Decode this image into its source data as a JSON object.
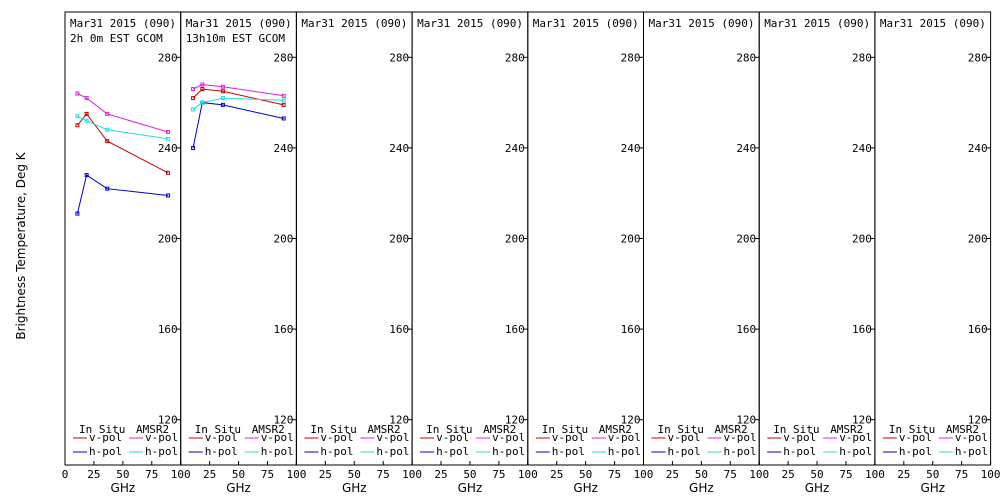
{
  "y_axis_label": "Brightness Temperature, Deg K",
  "x_axis_label": "GHz",
  "legend": {
    "in_situ": "In Situ",
    "amsr2": "AMSR2",
    "vpol": "v-pol",
    "hpol": "h-pol"
  },
  "colors": {
    "insitu_v": "#cc0000",
    "insitu_h": "#0000cc",
    "amsr2_v": "#dd22dd",
    "amsr2_h": "#22dddd"
  },
  "chart_data": {
    "type": "line",
    "xlim": [
      0,
      100
    ],
    "ylim": [
      100,
      300
    ],
    "x_ticks": [
      0,
      25,
      50,
      75,
      100
    ],
    "y_ticks": [
      120,
      160,
      200,
      240,
      280
    ],
    "panels": [
      {
        "title": "Mar31 2015 (090)",
        "subtitle": "2h 0m EST GCOM",
        "series": [
          {
            "name": "In Situ v-pol",
            "x": [
              10.7,
              18.7,
              36.5,
              89
            ],
            "y": [
              250,
              255,
              243,
              229
            ]
          },
          {
            "name": "In Situ h-pol",
            "x": [
              10.7,
              18.7,
              36.5,
              89
            ],
            "y": [
              211,
              228,
              222,
              219
            ]
          },
          {
            "name": "AMSR2 v-pol",
            "x": [
              10.7,
              18.7,
              36.5,
              89
            ],
            "y": [
              264,
              262,
              255,
              247
            ]
          },
          {
            "name": "AMSR2 h-pol",
            "x": [
              10.7,
              18.7,
              36.5,
              89
            ],
            "y": [
              254,
              252,
              248,
              244
            ]
          }
        ]
      },
      {
        "title": "Mar31 2015 (090)",
        "subtitle": "13h10m EST GCOM",
        "series": [
          {
            "name": "In Situ v-pol",
            "x": [
              10.7,
              18.7,
              36.5,
              89
            ],
            "y": [
              262,
              266,
              265,
              259
            ]
          },
          {
            "name": "In Situ h-pol",
            "x": [
              10.7,
              18.7,
              36.5,
              89
            ],
            "y": [
              240,
              260,
              259,
              253
            ]
          },
          {
            "name": "AMSR2 v-pol",
            "x": [
              10.7,
              18.7,
              36.5,
              89
            ],
            "y": [
              266,
              268,
              267,
              263
            ]
          },
          {
            "name": "AMSR2 h-pol",
            "x": [
              10.7,
              18.7,
              36.5,
              89
            ],
            "y": [
              257,
              260,
              262,
              261
            ]
          }
        ]
      },
      {
        "title": "Mar31 2015 (090)",
        "subtitle": "",
        "series": []
      },
      {
        "title": "Mar31 2015 (090)",
        "subtitle": "",
        "series": []
      },
      {
        "title": "Mar31 2015 (090)",
        "subtitle": "",
        "series": []
      },
      {
        "title": "Mar31 2015 (090)",
        "subtitle": "",
        "series": []
      },
      {
        "title": "Mar31 2015 (090)",
        "subtitle": "",
        "series": []
      },
      {
        "title": "Mar31 2015 (090)",
        "subtitle": "",
        "series": []
      }
    ]
  }
}
